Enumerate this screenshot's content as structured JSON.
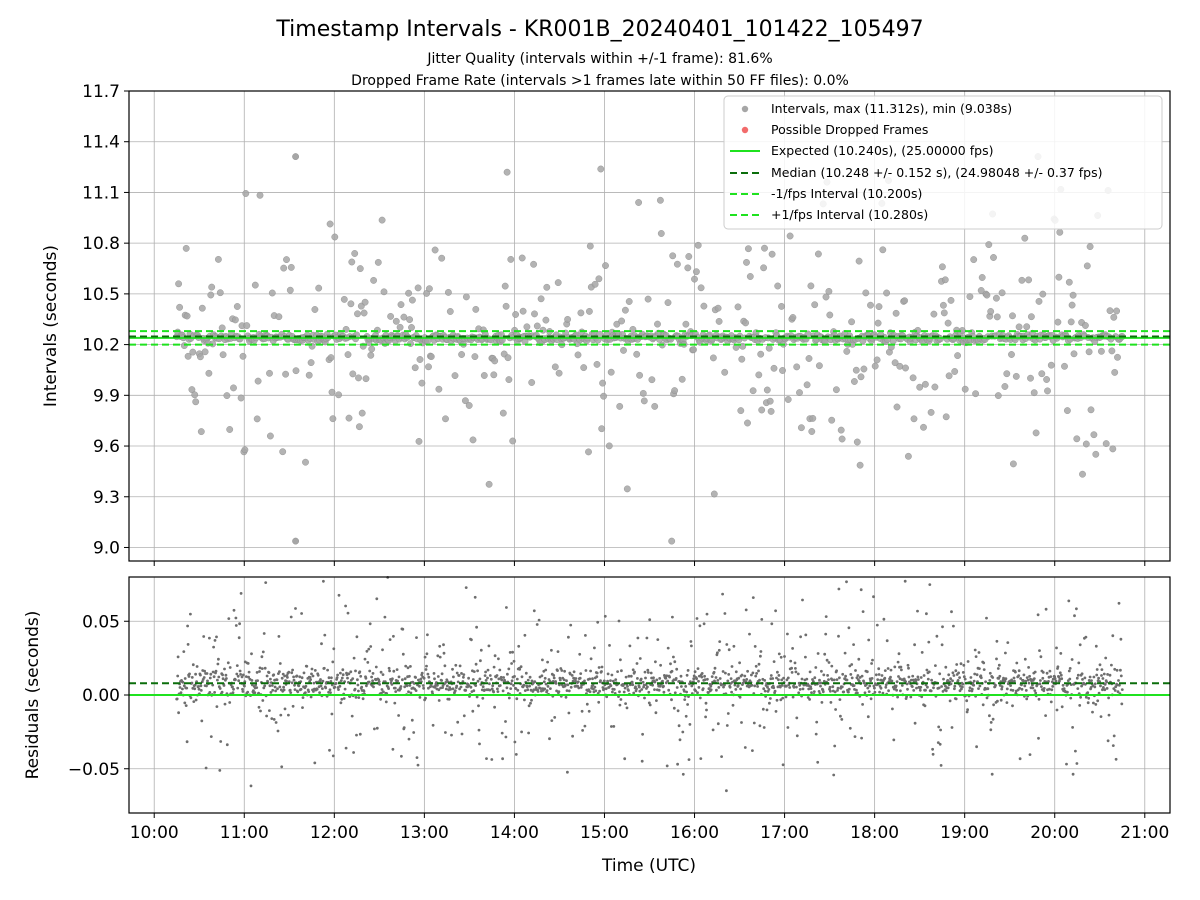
{
  "figure": {
    "title": "Timestamp Intervals - KR001B_20240401_101422_105497",
    "subtitle_1": "Jitter Quality (intervals within +/-1 frame): 81.6%",
    "subtitle_2": "Dropped Frame Rate (intervals >1 frames late within 50 FF files): 0.0%"
  },
  "chart_data": [
    {
      "type": "scatter",
      "ylabel": "Intervals (seconds)",
      "xlabel": "",
      "x_range_hours": [
        9.72,
        21.28
      ],
      "ylim": [
        8.92,
        11.7
      ],
      "yticks": [
        "9.0",
        "9.3",
        "9.6",
        "9.9",
        "10.2",
        "10.5",
        "10.8",
        "11.1",
        "11.4",
        "11.7"
      ],
      "grid": true,
      "legend_position": "top-right",
      "series": [
        {
          "name": "Intervals, max (11.312s), min (9.038s)",
          "kind": "points",
          "color": "#a6a6a6",
          "max": 11.312,
          "min": 9.038,
          "x_start": 10.25,
          "x_end": 20.75
        },
        {
          "name": "Possible Dropped Frames",
          "kind": "points",
          "color": "#f26b6b",
          "count": 0
        },
        {
          "name": "Expected (10.240s), (25.00000 fps)",
          "kind": "hline",
          "value": 10.24,
          "color": "#1fe21f",
          "dash": "solid"
        },
        {
          "name": "Median (10.248 +/- 0.152 s), (24.98048 +/- 0.37 fps)",
          "kind": "hline",
          "value": 10.248,
          "color": "#0b6e0b",
          "dash": "dashed"
        },
        {
          "name": "-1/fps Interval (10.200s)",
          "kind": "hline",
          "value": 10.2,
          "color": "#1fe21f",
          "dash": "dashed"
        },
        {
          "name": "+1/fps Interval (10.280s)",
          "kind": "hline",
          "value": 10.28,
          "color": "#1fe21f",
          "dash": "dashed"
        }
      ]
    },
    {
      "type": "scatter",
      "ylabel": "Residuals (seconds)",
      "xlabel": "Time (UTC)",
      "x_range_hours": [
        9.72,
        21.28
      ],
      "ylim": [
        -0.08,
        0.08
      ],
      "yticks": [
        "−0.05",
        "0.00",
        "0.05"
      ],
      "xticks": [
        "10:00",
        "11:00",
        "12:00",
        "13:00",
        "14:00",
        "15:00",
        "16:00",
        "17:00",
        "18:00",
        "19:00",
        "20:00",
        "21:00"
      ],
      "grid": true,
      "series": [
        {
          "kind": "points",
          "color": "#6e6e6e",
          "x_start": 10.25,
          "x_end": 20.75
        },
        {
          "kind": "hline",
          "value": 0.0,
          "color": "#1fe21f",
          "dash": "solid"
        },
        {
          "kind": "hline",
          "value": 0.008,
          "color": "#0b6e0b",
          "dash": "dashed"
        }
      ]
    }
  ]
}
